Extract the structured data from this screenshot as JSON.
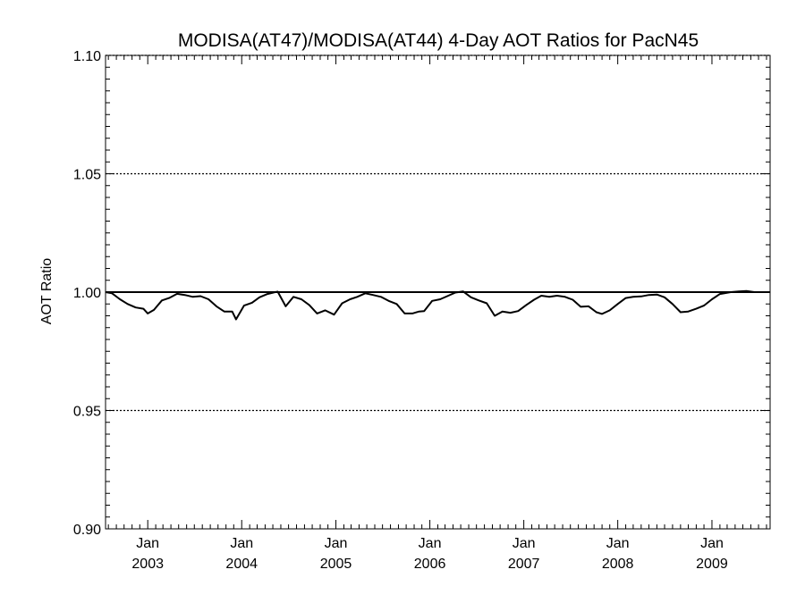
{
  "chart_data": {
    "type": "line",
    "title": "MODISA(AT47)/MODISA(AT44) 4-Day AOT Ratios for PacN45",
    "xlabel": "",
    "ylabel": "AOT Ratio",
    "xlim": [
      "2002-07-21",
      "2009-08-15"
    ],
    "ylim": [
      0.9,
      1.1
    ],
    "y_ticks": [
      "1.10",
      "1.05",
      "1.00",
      "0.95",
      "0.90"
    ],
    "dotted_gridlines_at": [
      1.1,
      1.05,
      0.95
    ],
    "reference_line": 1.0,
    "x_ticks": [
      {
        "date": "2003-01-01",
        "line1": "Jan",
        "line2": "2003"
      },
      {
        "date": "2004-01-01",
        "line1": "Jan",
        "line2": "2004"
      },
      {
        "date": "2005-01-01",
        "line1": "Jan",
        "line2": "2005"
      },
      {
        "date": "2006-01-01",
        "line1": "Jan",
        "line2": "2006"
      },
      {
        "date": "2007-01-01",
        "line1": "Jan",
        "line2": "2007"
      },
      {
        "date": "2008-01-01",
        "line1": "Jan",
        "line2": "2008"
      },
      {
        "date": "2009-01-01",
        "line1": "Jan",
        "line2": "2009"
      }
    ],
    "series": [
      {
        "color": "#000000",
        "points": [
          [
            "2002-07-21",
            1.0
          ],
          [
            "2002-08-15",
            0.9995
          ],
          [
            "2002-09-15",
            0.997
          ],
          [
            "2002-10-15",
            0.995
          ],
          [
            "2002-11-15",
            0.9935
          ],
          [
            "2002-12-15",
            0.993
          ],
          [
            "2003-01-01",
            0.991
          ],
          [
            "2003-01-25",
            0.9925
          ],
          [
            "2003-02-25",
            0.9965
          ],
          [
            "2003-03-25",
            0.9975
          ],
          [
            "2003-04-25",
            0.9993
          ],
          [
            "2003-05-25",
            0.9988
          ],
          [
            "2003-06-25",
            0.998
          ],
          [
            "2003-07-25",
            0.9983
          ],
          [
            "2003-08-25",
            0.997
          ],
          [
            "2003-09-25",
            0.994
          ],
          [
            "2003-10-25",
            0.9918
          ],
          [
            "2003-11-25",
            0.9918
          ],
          [
            "2003-12-10",
            0.9885
          ],
          [
            "2004-01-10",
            0.9943
          ],
          [
            "2004-02-10",
            0.9955
          ],
          [
            "2004-03-10",
            0.9978
          ],
          [
            "2004-04-10",
            0.9992
          ],
          [
            "2004-05-10",
            1.0
          ],
          [
            "2004-05-20",
            1.0002
          ],
          [
            "2004-06-20",
            0.994
          ],
          [
            "2004-07-20",
            0.998
          ],
          [
            "2004-08-20",
            0.997
          ],
          [
            "2004-09-20",
            0.9945
          ],
          [
            "2004-10-20",
            0.991
          ],
          [
            "2004-11-20",
            0.9923
          ],
          [
            "2004-12-25",
            0.9905
          ],
          [
            "2005-01-25",
            0.9953
          ],
          [
            "2005-02-25",
            0.997
          ],
          [
            "2005-03-25",
            0.998
          ],
          [
            "2005-04-25",
            0.9995
          ],
          [
            "2005-05-25",
            0.9988
          ],
          [
            "2005-06-25",
            0.998
          ],
          [
            "2005-07-25",
            0.9963
          ],
          [
            "2005-08-25",
            0.995
          ],
          [
            "2005-09-25",
            0.991
          ],
          [
            "2005-10-25",
            0.991
          ],
          [
            "2005-11-20",
            0.9918
          ],
          [
            "2005-12-10",
            0.992
          ],
          [
            "2006-01-10",
            0.9963
          ],
          [
            "2006-02-10",
            0.997
          ],
          [
            "2006-03-10",
            0.9983
          ],
          [
            "2006-04-10",
            0.9998
          ],
          [
            "2006-05-10",
            1.0003
          ],
          [
            "2006-06-10",
            0.9978
          ],
          [
            "2006-07-10",
            0.9965
          ],
          [
            "2006-08-10",
            0.9953
          ],
          [
            "2006-09-10",
            0.99
          ],
          [
            "2006-10-10",
            0.9918
          ],
          [
            "2006-11-10",
            0.9913
          ],
          [
            "2006-12-10",
            0.992
          ],
          [
            "2007-01-10",
            0.9945
          ],
          [
            "2007-02-10",
            0.9968
          ],
          [
            "2007-03-10",
            0.9985
          ],
          [
            "2007-04-10",
            0.998
          ],
          [
            "2007-05-10",
            0.9985
          ],
          [
            "2007-06-10",
            0.998
          ],
          [
            "2007-07-10",
            0.9968
          ],
          [
            "2007-08-10",
            0.9938
          ],
          [
            "2007-09-10",
            0.994
          ],
          [
            "2007-10-10",
            0.9915
          ],
          [
            "2007-11-01",
            0.9908
          ],
          [
            "2007-12-01",
            0.9923
          ],
          [
            "2008-01-01",
            0.995
          ],
          [
            "2008-02-01",
            0.9975
          ],
          [
            "2008-03-01",
            0.998
          ],
          [
            "2008-04-01",
            0.9982
          ],
          [
            "2008-05-01",
            0.9988
          ],
          [
            "2008-06-01",
            0.999
          ],
          [
            "2008-07-01",
            0.9978
          ],
          [
            "2008-08-01",
            0.995
          ],
          [
            "2008-09-01",
            0.9915
          ],
          [
            "2008-10-01",
            0.9918
          ],
          [
            "2008-11-01",
            0.993
          ],
          [
            "2008-12-01",
            0.9943
          ],
          [
            "2009-01-01",
            0.997
          ],
          [
            "2009-02-01",
            0.9992
          ],
          [
            "2009-03-15",
            1.0
          ],
          [
            "2009-04-15",
            1.0003
          ],
          [
            "2009-05-15",
            1.0005
          ],
          [
            "2009-06-15",
            1.0
          ],
          [
            "2009-07-15",
            1.0
          ]
        ]
      }
    ]
  }
}
